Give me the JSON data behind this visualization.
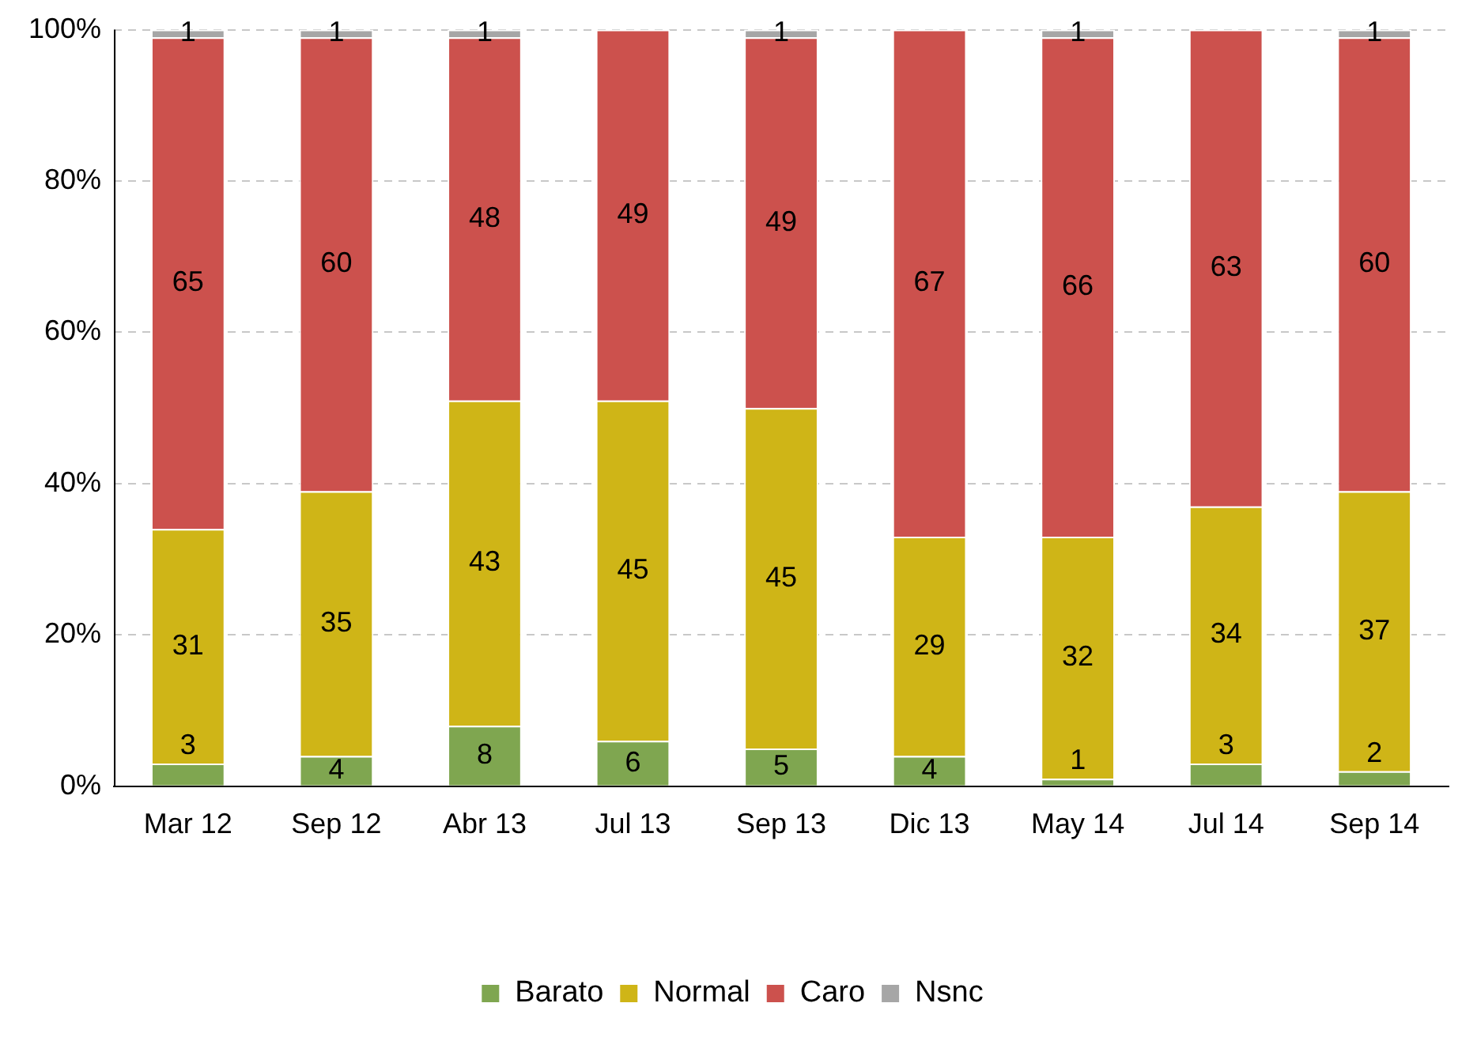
{
  "chart_data": {
    "type": "bar",
    "stacked": true,
    "categories": [
      "Mar 12",
      "Sep 12",
      "Abr 13",
      "Jul 13",
      "Sep 13",
      "Dic 13",
      "May 14",
      "Jul 14",
      "Sep 14"
    ],
    "series": [
      {
        "name": "Barato",
        "color": "#7fa650",
        "values": [
          3,
          4,
          8,
          6,
          5,
          4,
          1,
          3,
          2
        ]
      },
      {
        "name": "Normal",
        "color": "#cfb517",
        "values": [
          31,
          35,
          43,
          45,
          45,
          29,
          32,
          34,
          37
        ]
      },
      {
        "name": "Caro",
        "color": "#cc514d",
        "values": [
          65,
          60,
          48,
          49,
          49,
          67,
          66,
          63,
          60
        ]
      },
      {
        "name": "Nsnc",
        "color": "#a6a6a6",
        "values": [
          1,
          1,
          1,
          null,
          1,
          null,
          1,
          null,
          1
        ]
      }
    ],
    "ylim": [
      0,
      100
    ],
    "yticks": [
      {
        "value": 0,
        "label": "0%"
      },
      {
        "value": 20,
        "label": "20%"
      },
      {
        "value": 40,
        "label": "40%"
      },
      {
        "value": 60,
        "label": "60%"
      },
      {
        "value": 80,
        "label": "80%"
      },
      {
        "value": 100,
        "label": "100%"
      }
    ],
    "grid": "y",
    "legend": "bottom",
    "data_labels": true
  }
}
